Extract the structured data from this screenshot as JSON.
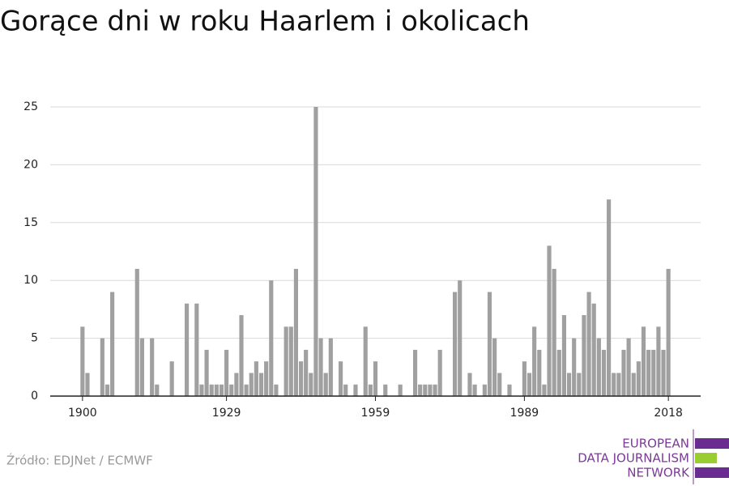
{
  "chart_data": {
    "type": "bar",
    "title": "Gorące dni w roku Haarlem i okolicach",
    "source": "Źródło: EDJNet / ECMWF",
    "x": [
      1900,
      1901,
      1904,
      1905,
      1906,
      1911,
      1912,
      1914,
      1915,
      1918,
      1921,
      1923,
      1924,
      1925,
      1926,
      1927,
      1928,
      1929,
      1930,
      1931,
      1932,
      1933,
      1934,
      1935,
      1936,
      1937,
      1938,
      1939,
      1941,
      1942,
      1943,
      1944,
      1945,
      1946,
      1947,
      1948,
      1949,
      1950,
      1952,
      1953,
      1955,
      1957,
      1958,
      1959,
      1961,
      1964,
      1967,
      1968,
      1969,
      1970,
      1971,
      1972,
      1975,
      1976,
      1978,
      1979,
      1981,
      1982,
      1983,
      1984,
      1986,
      1989,
      1990,
      1991,
      1992,
      1993,
      1994,
      1995,
      1996,
      1997,
      1998,
      1999,
      2000,
      2001,
      2002,
      2003,
      2004,
      2005,
      2006,
      2007,
      2008,
      2009,
      2010,
      2011,
      2012,
      2013,
      2014,
      2015,
      2016,
      2017,
      2018
    ],
    "values": [
      6,
      2,
      5,
      1,
      9,
      11,
      5,
      5,
      1,
      3,
      8,
      8,
      1,
      4,
      1,
      1,
      1,
      4,
      1,
      2,
      7,
      1,
      2,
      3,
      2,
      3,
      10,
      1,
      6,
      6,
      11,
      3,
      4,
      2,
      25,
      5,
      2,
      5,
      3,
      1,
      1,
      6,
      1,
      3,
      1,
      1,
      4,
      1,
      1,
      1,
      1,
      4,
      9,
      10,
      2,
      1,
      1,
      9,
      5,
      2,
      1,
      3,
      2,
      6,
      4,
      1,
      13,
      11,
      4,
      7,
      2,
      5,
      2,
      7,
      9,
      8,
      5,
      4,
      17,
      2,
      2,
      4,
      5,
      2,
      3,
      6,
      4,
      4,
      6,
      4,
      11
    ],
    "color": "#a0a0a0",
    "xlim": [
      1893.5,
      2024.5
    ],
    "xticks": [
      1900,
      1929,
      1959,
      1989,
      2018
    ],
    "ylim": [
      0,
      25
    ],
    "yticks": [
      0,
      5,
      10,
      15,
      20,
      25
    ],
    "grid": true
  },
  "logo": {
    "lines": [
      "EUROPEAN",
      "DATA JOURNALISM",
      "NETWORK"
    ]
  }
}
